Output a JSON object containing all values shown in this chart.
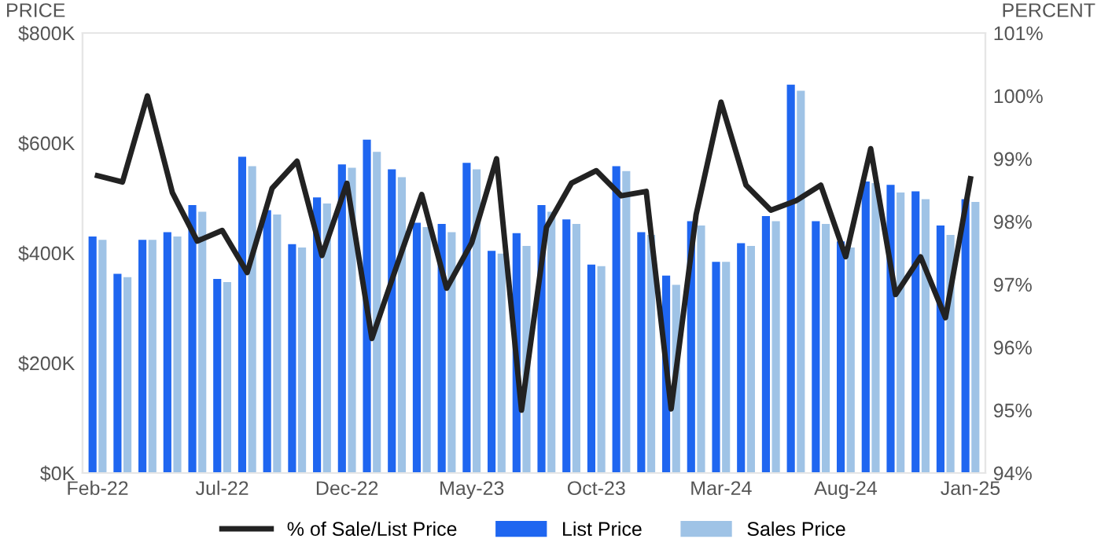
{
  "chart_data": {
    "type": "bar",
    "categories": [
      "Feb-22",
      null,
      null,
      null,
      null,
      "Jul-22",
      null,
      null,
      null,
      null,
      "Dec-22",
      null,
      null,
      null,
      null,
      "May-23",
      null,
      null,
      null,
      null,
      "Oct-23",
      null,
      null,
      null,
      null,
      "Mar-24",
      null,
      null,
      null,
      null,
      "Aug-24",
      null,
      null,
      null,
      null,
      "Jan-25"
    ],
    "ylabel": "PRICE",
    "y2label": "PERCENT",
    "series": [
      {
        "name": "% of Sale/List Price",
        "type": "line",
        "axis": "y2",
        "color": "#222222",
        "values": [
          98.73,
          98.63,
          100.0,
          98.46,
          97.69,
          97.86,
          97.19,
          98.53,
          98.96,
          97.46,
          98.61,
          96.14,
          97.3,
          98.43,
          96.94,
          97.66,
          99.0,
          95.0,
          97.91,
          98.61,
          98.81,
          98.41,
          98.48,
          95.02,
          98.11,
          99.9,
          98.58,
          98.18,
          98.33,
          98.58,
          97.44,
          99.16,
          96.84,
          97.44,
          96.47,
          98.68
        ]
      },
      {
        "name": "List Price",
        "color": "#1f66f0",
        "values": [
          430,
          362,
          424,
          438,
          487,
          353,
          575,
          478,
          416,
          501,
          561,
          606,
          552,
          455,
          453,
          564,
          404,
          436,
          487,
          461,
          379,
          558,
          438,
          359,
          458,
          384,
          418,
          467,
          706,
          458,
          421,
          530,
          524,
          512,
          450,
          498
        ]
      },
      {
        "name": "Sales Price",
        "color": "#9fc3e6",
        "values": [
          424,
          356,
          424,
          430,
          475,
          347,
          558,
          470,
          410,
          490,
          555,
          584,
          538,
          447,
          438,
          552,
          399,
          413,
          475,
          453,
          376,
          549,
          433,
          342,
          450,
          384,
          413,
          458,
          695,
          453,
          410,
          527,
          510,
          498,
          433,
          493
        ]
      }
    ],
    "ylim": [
      0,
      800
    ],
    "yticks": [
      {
        "value": 0,
        "label": "$0K"
      },
      {
        "value": 200,
        "label": "$200K"
      },
      {
        "value": 400,
        "label": "$400K"
      },
      {
        "value": 600,
        "label": "$600K"
      },
      {
        "value": 800,
        "label": "$800K"
      }
    ],
    "y2lim": [
      94,
      101
    ],
    "y2ticks": [
      {
        "value": 94,
        "label": "94%"
      },
      {
        "value": 95,
        "label": "95%"
      },
      {
        "value": 96,
        "label": "96%"
      },
      {
        "value": 97,
        "label": "97%"
      },
      {
        "value": 98,
        "label": "98%"
      },
      {
        "value": 99,
        "label": "99%"
      },
      {
        "value": 100,
        "label": "100%"
      },
      {
        "value": 101,
        "label": "101%"
      }
    ],
    "grid": false,
    "legend": "bottom",
    "marker": "none",
    "line_style": "solid"
  }
}
